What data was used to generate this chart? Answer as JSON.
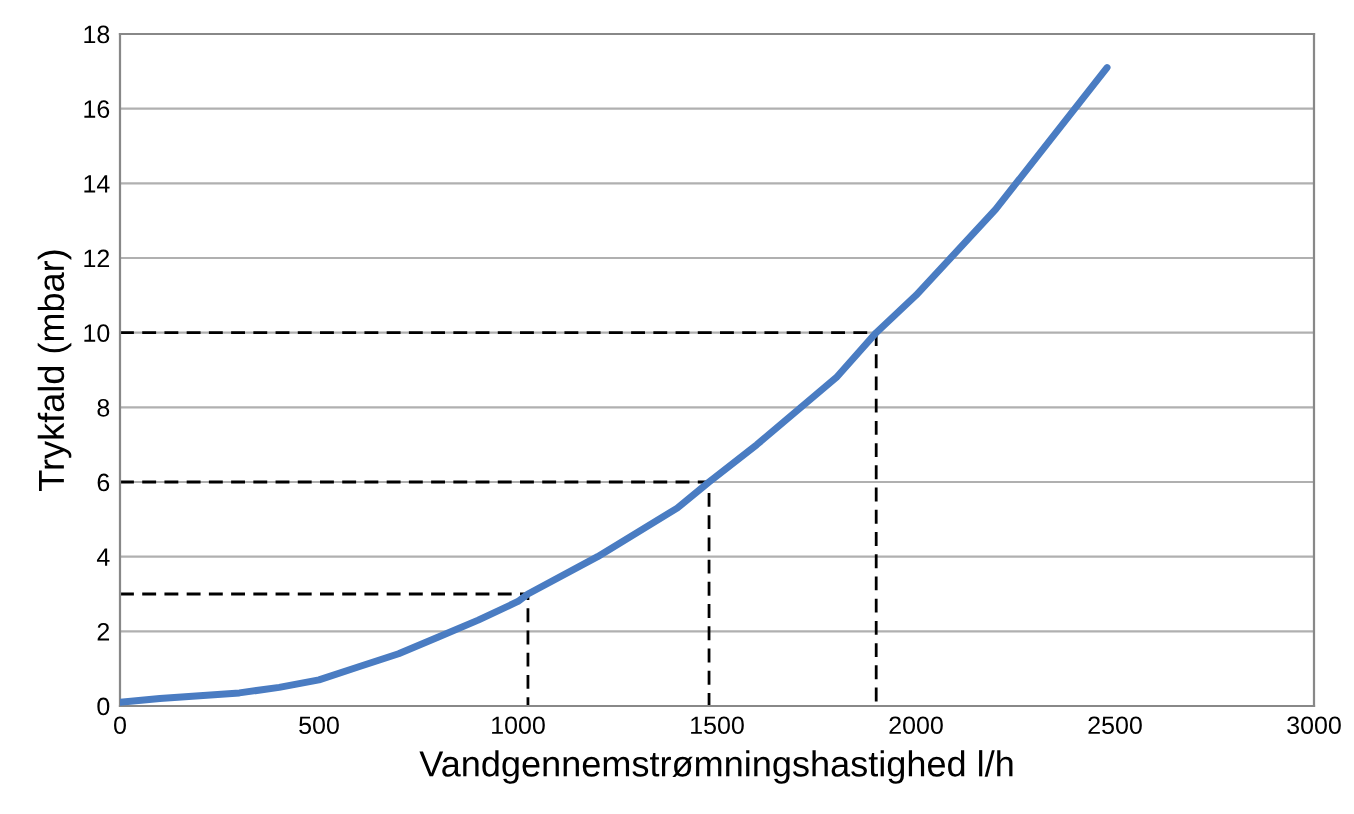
{
  "chart_data": {
    "type": "line",
    "xlabel": "Vandgennemstrømningshastighed l/h",
    "ylabel": "Trykfald (mbar)",
    "xlim": [
      0,
      3000
    ],
    "xticks": [
      0,
      500,
      1000,
      1500,
      2000,
      2500,
      3000
    ],
    "ylim": [
      0,
      18
    ],
    "yticks": [
      0,
      2,
      4,
      6,
      8,
      10,
      12,
      14,
      16,
      18
    ],
    "grid": "y",
    "legend": false,
    "series": [
      {
        "color": "#4a7cc2",
        "line_style": "solid",
        "x": [
          0,
          100,
          300,
          400,
          500,
          600,
          700,
          800,
          900,
          1000,
          1025,
          1200,
          1400,
          1480,
          1600,
          1800,
          1900,
          2000,
          2200,
          2480
        ],
        "values": [
          0.1,
          0.2,
          0.35,
          0.5,
          0.7,
          1.05,
          1.4,
          1.85,
          2.3,
          2.8,
          3.0,
          4.0,
          5.3,
          6.0,
          7.0,
          8.8,
          10.0,
          11.0,
          13.3,
          17.1
        ]
      },
      {
        "color": "#000000",
        "line_style": "dashed",
        "x": [
          0,
          1025,
          1025
        ],
        "values": [
          3,
          3,
          0
        ]
      },
      {
        "color": "#000000",
        "line_style": "dashed",
        "x": [
          0,
          1480,
          1480
        ],
        "values": [
          6,
          6,
          0
        ]
      },
      {
        "color": "#000000",
        "line_style": "dashed",
        "x": [
          0,
          1900,
          1900
        ],
        "values": [
          10,
          10,
          0
        ]
      }
    ]
  }
}
